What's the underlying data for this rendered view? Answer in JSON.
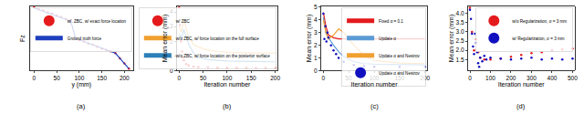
{
  "chart_data": [
    {
      "type": "line",
      "title": "(a)",
      "x_label": "y (mm)",
      "y_label": "Fz",
      "xlim": [
        -10,
        220
      ],
      "xticks": [
        0,
        50,
        100,
        150,
        200
      ],
      "ylim": [
        0,
        1
      ],
      "tick_labels": "x",
      "grid": false,
      "legend": "upper right",
      "series": [
        {
          "name": "w/. ZBC, w/ exact force location",
          "color": "#e41a1c",
          "marker": "circle",
          "line_style": "none",
          "x": [
            0,
            10,
            20,
            30,
            40,
            50,
            60,
            70,
            80,
            90,
            100,
            110,
            120,
            130,
            140,
            150,
            160,
            170,
            180,
            190,
            200,
            210
          ],
          "values": [
            0.98,
            0.95,
            0.93,
            0.9,
            0.88,
            0.85,
            0.83,
            0.8,
            0.78,
            0.52,
            0.47,
            0.45,
            0.42,
            0.4,
            0.37,
            0.34,
            0.32,
            0.3,
            0.27,
            0.19,
            0.11,
            0.03
          ]
        },
        {
          "name": "Ground truth force",
          "color": "#1f3fbf",
          "line_style": "solid",
          "x": [
            0,
            20,
            40,
            60,
            80,
            84,
            88,
            92,
            110,
            130,
            150,
            165,
            180,
            190,
            200,
            210
          ],
          "values": [
            0.97,
            0.92,
            0.87,
            0.82,
            0.77,
            0.7,
            0.58,
            0.5,
            0.45,
            0.4,
            0.34,
            0.31,
            0.27,
            0.19,
            0.11,
            0.03
          ]
        }
      ]
    },
    {
      "type": "line",
      "title": "(b)",
      "x_label": "Iteration number",
      "y_label": "Mean error (mm)",
      "xlim": [
        -5,
        205
      ],
      "xticks": [
        0,
        50,
        100,
        150,
        200
      ],
      "ylim": [
        0,
        4.4
      ],
      "yticks": [
        0,
        1,
        2,
        3,
        4
      ],
      "grid": false,
      "legend": "upper right",
      "series": [
        {
          "name": "w/ ZBC",
          "color": "#e41a1c",
          "marker": "circle",
          "line_style": "none",
          "x": [
            0,
            2,
            4,
            6,
            8,
            10,
            15,
            20,
            30,
            40,
            60,
            80,
            100,
            120,
            140,
            160,
            180,
            200
          ],
          "values": [
            4.3,
            3.1,
            2.0,
            1.3,
            0.9,
            0.7,
            0.45,
            0.35,
            0.28,
            0.25,
            0.22,
            0.2,
            0.2,
            0.19,
            0.19,
            0.18,
            0.18,
            0.18
          ]
        },
        {
          "name": "w/o ZBC, w/ force location on the full surface",
          "color": "#f0a030",
          "line_style": "solid",
          "x": [
            0,
            5,
            10,
            20,
            30,
            40,
            60,
            80,
            100,
            150,
            200
          ],
          "values": [
            3.0,
            2.6,
            3.4,
            2.3,
            1.8,
            1.6,
            1.4,
            1.3,
            1.25,
            1.2,
            1.2
          ]
        },
        {
          "name": "w/o ZBC, w/ force location on the posterior surface",
          "color": "#2c7fb8",
          "line_style": "solid",
          "x": [
            0,
            5,
            10,
            20,
            30,
            40,
            60,
            80,
            100,
            150,
            200
          ],
          "values": [
            2.5,
            2.2,
            2.8,
            1.8,
            1.2,
            0.9,
            0.75,
            0.68,
            0.65,
            0.62,
            0.6
          ]
        }
      ]
    },
    {
      "type": "line",
      "title": "(c)",
      "x_label": "Iteration number",
      "y_label": "Mean error (mm)",
      "xlim": [
        -5,
        205
      ],
      "xticks": [
        0,
        50,
        100,
        150,
        200
      ],
      "ylim": [
        0,
        5.1
      ],
      "yticks": [
        0,
        1,
        2,
        3,
        4,
        5
      ],
      "grid": false,
      "legend": "upper right",
      "series": [
        {
          "name": "Fixed α = 0.1",
          "color": "#e41a1c",
          "line_style": "solid",
          "x": [
            0,
            5,
            10,
            20,
            30,
            40,
            60,
            100,
            150,
            200
          ],
          "values": [
            4.6,
            3.5,
            2.8,
            2.6,
            2.5,
            2.5,
            2.5,
            2.5,
            2.5,
            2.5
          ]
        },
        {
          "name": "Update α",
          "color": "#5b9bd5",
          "line_style": "solid",
          "x": [
            0,
            5,
            10,
            20,
            30,
            40,
            60,
            80,
            100,
            150,
            200
          ],
          "values": [
            4.2,
            3.0,
            2.6,
            2.0,
            1.5,
            1.1,
            0.7,
            0.55,
            0.5,
            0.45,
            0.45
          ]
        },
        {
          "name": "Update α and Nestrov",
          "color": "#f0a030",
          "line_style": "solid",
          "x": [
            0,
            5,
            10,
            20,
            30,
            40,
            60,
            80,
            100,
            150,
            200
          ],
          "values": [
            4.0,
            3.0,
            2.5,
            2.8,
            3.3,
            3.0,
            2.0,
            1.2,
            0.8,
            0.6,
            0.55
          ]
        },
        {
          "name": "Update α and Nestrov",
          "color": "#1010c0",
          "marker": "circle",
          "line_style": "none",
          "x": [
            0,
            2,
            4,
            6,
            8,
            10,
            15,
            20,
            25,
            30,
            40,
            60,
            80,
            100,
            150,
            200
          ],
          "values": [
            4.5,
            2.5,
            3.5,
            2.3,
            3.0,
            2.6,
            2.0,
            1.6,
            1.3,
            1.0,
            0.7,
            0.45,
            0.35,
            0.3,
            0.3,
            0.3
          ]
        }
      ]
    },
    {
      "type": "line",
      "title": "(d)",
      "x_label": "Iteration number",
      "y_label": "Mean error (mm)",
      "xlim": [
        -10,
        510
      ],
      "xticks": [
        0,
        100,
        200,
        300,
        400,
        500
      ],
      "ylim": [
        0.9,
        4.4
      ],
      "yticks": [
        1.5,
        {
          "value": 2,
          "label": "2.0"
        },
        2.5,
        {
          "value": 3,
          "label": "3.0"
        },
        3.5,
        {
          "value": 4,
          "label": "4.0"
        }
      ],
      "grid": false,
      "legend": "upper right",
      "series": [
        {
          "name": "w/o Regularization, σ = 3 mm",
          "color": "#e41a1c",
          "marker": "circle",
          "line_style": "none",
          "x": [
            0,
            10,
            20,
            30,
            40,
            50,
            70,
            100,
            150,
            200,
            250,
            300,
            350,
            400,
            450,
            500
          ],
          "values": [
            4.3,
            3.0,
            2.0,
            2.6,
            1.9,
            1.6,
            1.5,
            1.5,
            1.55,
            1.65,
            1.75,
            1.85,
            1.9,
            2.0,
            2.05,
            2.1
          ]
        },
        {
          "name": "w/ Regularization, σ = 3 mm",
          "color": "#1010c0",
          "marker": "circle",
          "line_style": "none",
          "x": [
            0,
            5,
            10,
            15,
            20,
            25,
            30,
            35,
            40,
            45,
            50,
            60,
            70,
            80,
            100,
            150,
            200,
            250,
            300,
            350,
            400,
            450,
            500
          ],
          "values": [
            4.2,
            3.7,
            2.9,
            2.2,
            1.8,
            2.9,
            2.4,
            1.9,
            1.3,
            1.1,
            1.6,
            1.4,
            1.7,
            1.5,
            1.6,
            1.55,
            1.5,
            1.55,
            1.6,
            1.5,
            1.55,
            1.5,
            1.55
          ]
        }
      ]
    }
  ]
}
